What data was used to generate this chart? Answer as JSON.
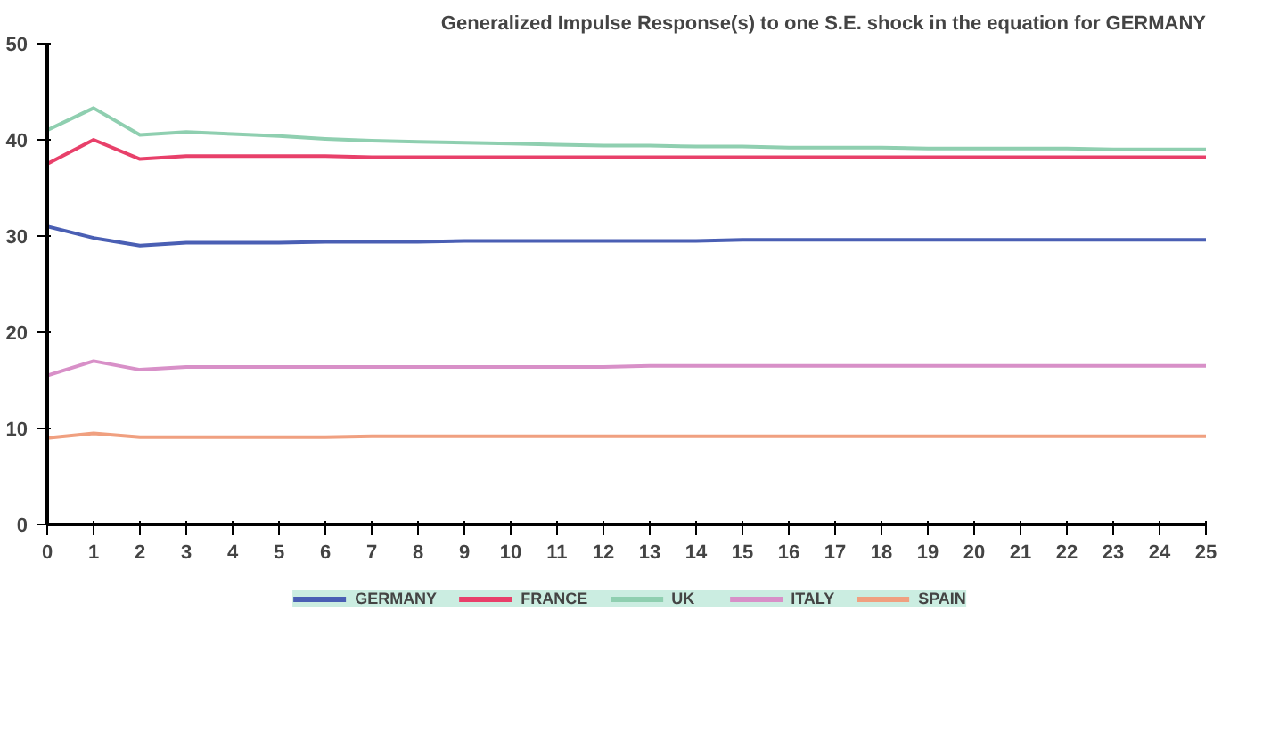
{
  "chart_data": {
    "type": "line",
    "title": "Generalized Impulse Response(s) to one S.E. shock in the equation for GERMANY",
    "x": [
      0,
      1,
      2,
      3,
      4,
      5,
      6,
      7,
      8,
      9,
      10,
      11,
      12,
      13,
      14,
      15,
      16,
      17,
      18,
      19,
      20,
      21,
      22,
      23,
      24,
      25
    ],
    "series": [
      {
        "name": "GERMANY",
        "color": "#4a5fb4",
        "values": [
          31,
          29.8,
          29,
          29.3,
          29.3,
          29.3,
          29.4,
          29.4,
          29.4,
          29.5,
          29.5,
          29.5,
          29.5,
          29.5,
          29.5,
          29.6,
          29.6,
          29.6,
          29.6,
          29.6,
          29.6,
          29.6,
          29.6,
          29.6,
          29.6,
          29.6
        ]
      },
      {
        "name": "FRANCE",
        "color": "#e8406a",
        "values": [
          37.5,
          40,
          38,
          38.3,
          38.3,
          38.3,
          38.3,
          38.2,
          38.2,
          38.2,
          38.2,
          38.2,
          38.2,
          38.2,
          38.2,
          38.2,
          38.2,
          38.2,
          38.2,
          38.2,
          38.2,
          38.2,
          38.2,
          38.2,
          38.2,
          38.2
        ]
      },
      {
        "name": "UK",
        "color": "#8fcfb0",
        "values": [
          41,
          43.3,
          40.5,
          40.8,
          40.6,
          40.4,
          40.1,
          39.9,
          39.8,
          39.7,
          39.6,
          39.5,
          39.4,
          39.4,
          39.3,
          39.3,
          39.2,
          39.2,
          39.2,
          39.1,
          39.1,
          39.1,
          39.1,
          39,
          39,
          39
        ]
      },
      {
        "name": "ITALY",
        "color": "#d890c8",
        "values": [
          15.5,
          17,
          16.1,
          16.4,
          16.4,
          16.4,
          16.4,
          16.4,
          16.4,
          16.4,
          16.4,
          16.4,
          16.4,
          16.5,
          16.5,
          16.5,
          16.5,
          16.5,
          16.5,
          16.5,
          16.5,
          16.5,
          16.5,
          16.5,
          16.5,
          16.5
        ]
      },
      {
        "name": "SPAIN",
        "color": "#f0a080",
        "values": [
          9,
          9.5,
          9.1,
          9.1,
          9.1,
          9.1,
          9.1,
          9.2,
          9.2,
          9.2,
          9.2,
          9.2,
          9.2,
          9.2,
          9.2,
          9.2,
          9.2,
          9.2,
          9.2,
          9.2,
          9.2,
          9.2,
          9.2,
          9.2,
          9.2,
          9.2
        ]
      }
    ],
    "xlim": [
      0,
      25
    ],
    "ylim": [
      0,
      50
    ],
    "xticks": [
      0,
      1,
      2,
      3,
      4,
      5,
      6,
      7,
      8,
      9,
      10,
      11,
      12,
      13,
      14,
      15,
      16,
      17,
      18,
      19,
      20,
      21,
      22,
      23,
      24,
      25
    ],
    "yticks": [
      0,
      10,
      20,
      30,
      40,
      50
    ],
    "grid": false,
    "legend": "bottom",
    "marker": "none",
    "line_style": "solid"
  }
}
